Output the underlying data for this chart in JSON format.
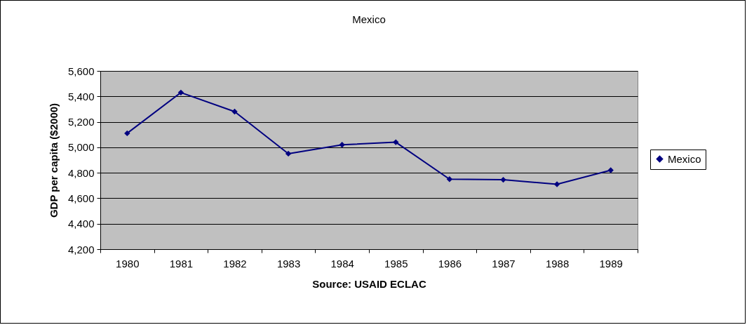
{
  "chart_data": {
    "type": "line",
    "title": "Mexico",
    "xlabel": "Source: USAID ECLAC",
    "ylabel": "GDP per capita ($2000)",
    "categories": [
      "1980",
      "1981",
      "1982",
      "1983",
      "1984",
      "1985",
      "1986",
      "1987",
      "1988",
      "1989"
    ],
    "series": [
      {
        "name": "Mexico",
        "color": "#000080",
        "values": [
          5110,
          5430,
          5280,
          4950,
          5020,
          5040,
          4750,
          4745,
          4710,
          4820
        ]
      }
    ],
    "ylim": [
      4200,
      5600
    ],
    "yticks": [
      {
        "value": 4200,
        "label": "4,200"
      },
      {
        "value": 4400,
        "label": "4,400"
      },
      {
        "value": 4600,
        "label": "4,600"
      },
      {
        "value": 4800,
        "label": "4,800"
      },
      {
        "value": 5000,
        "label": "5,000"
      },
      {
        "value": 5200,
        "label": "5,200"
      },
      {
        "value": 5400,
        "label": "5,400"
      },
      {
        "value": 5600,
        "label": "5,600"
      }
    ],
    "grid": "y",
    "legend": "right",
    "marker": "diamond"
  }
}
